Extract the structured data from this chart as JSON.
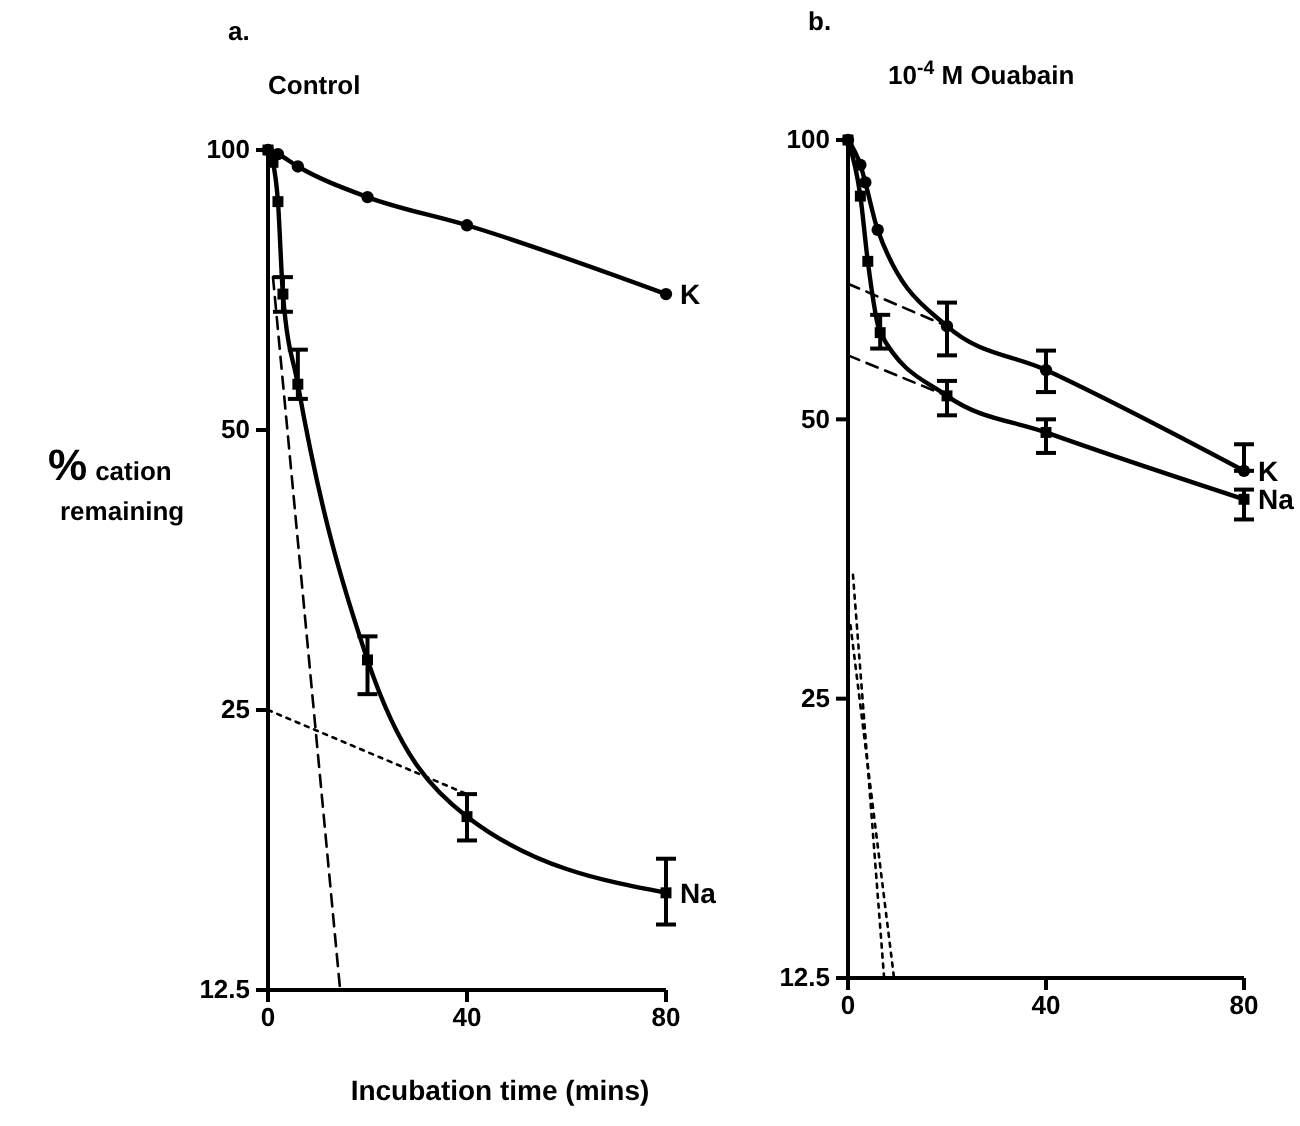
{
  "chart_data": [
    {
      "type": "line",
      "title": "Control",
      "xlabel": "Incubation time (mins)",
      "ylabel": "% cation remaining",
      "annotations": [
        "a."
      ],
      "log": true,
      "xlim": [
        0,
        80
      ],
      "xticks": [
        0,
        40,
        80
      ],
      "ylim": [
        12.5,
        100
      ],
      "yticks": [
        100,
        50,
        25,
        12.5
      ],
      "series": [
        {
          "name": "K",
          "color": "#000000",
          "marker": "circle",
          "x": [
            0,
            2,
            6,
            20,
            40,
            80
          ],
          "values": [
            100,
            99,
            96,
            89,
            83,
            70
          ]
        },
        {
          "name": "Na",
          "color": "#000000",
          "marker": "square",
          "x": [
            0,
            1,
            2,
            3,
            6,
            20,
            40,
            80
          ],
          "values": [
            100,
            97,
            88,
            70,
            56,
            28.3,
            19.2,
            15.9
          ],
          "errors": [
            null,
            null,
            null,
            [
              67,
              73
            ],
            [
              54,
              61
            ],
            [
              26,
              30
            ],
            [
              18.1,
              20.3
            ],
            [
              14.7,
              17.3
            ]
          ]
        },
        {
          "type": "line",
          "color": "#000000",
          "marker": "none",
          "line_style": "dotted",
          "x": [
            0,
            40
          ],
          "values": [
            25,
            20.3
          ]
        },
        {
          "type": "line",
          "color": "#000000",
          "marker": "none",
          "line_style": "dashed",
          "x": [
            1,
            14.5
          ],
          "values": [
            73,
            12.5
          ]
        }
      ]
    },
    {
      "type": "line",
      "title": "10$^{-4}$ M Ouabain",
      "annotations": [
        "b."
      ],
      "log": true,
      "xlim": [
        0,
        80
      ],
      "xticks": [
        0,
        40,
        80
      ],
      "ylim": [
        12.5,
        100
      ],
      "yticks": [
        100,
        50,
        25,
        12.5
      ],
      "series": [
        {
          "name": "K",
          "color": "#000000",
          "marker": "circle",
          "x": [
            0,
            2.5,
            3.5,
            6,
            20,
            40,
            80
          ],
          "values": [
            100,
            94,
            90,
            80,
            63,
            56.5,
            44
          ],
          "errors": [
            null,
            null,
            null,
            null,
            [
              58.6,
              66.8
            ],
            [
              53.5,
              59.3
            ],
            [
              44,
              47
            ]
          ]
        },
        {
          "name": "Na",
          "color": "#000000",
          "marker": "square",
          "x": [
            0,
            2.5,
            4,
            6.5,
            20,
            40,
            80
          ],
          "values": [
            100,
            87,
            74,
            62,
            53,
            48.4,
            41
          ],
          "errors": [
            null,
            null,
            null,
            [
              59.6,
              64.8
            ],
            [
              50.5,
              55
            ],
            [
              46,
              50
            ],
            [
              39,
              42
            ]
          ]
        },
        {
          "type": "line",
          "color": "#000000",
          "marker": "none",
          "line_style": "dashed",
          "x": [
            0,
            20
          ],
          "values": [
            70,
            63
          ]
        },
        {
          "type": "line",
          "color": "#000000",
          "marker": "none",
          "line_style": "dashed",
          "x": [
            0,
            20
          ],
          "values": [
            58.6,
            53
          ]
        },
        {
          "type": "line",
          "color": "#000000",
          "marker": "none",
          "line_style": "dotted",
          "x": [
            1,
            7.3
          ],
          "values": [
            34,
            12.5
          ]
        },
        {
          "type": "line",
          "color": "#000000",
          "marker": "none",
          "line_style": "dotted",
          "x": [
            0.5,
            9.3
          ],
          "values": [
            30,
            12.5
          ]
        }
      ]
    }
  ]
}
